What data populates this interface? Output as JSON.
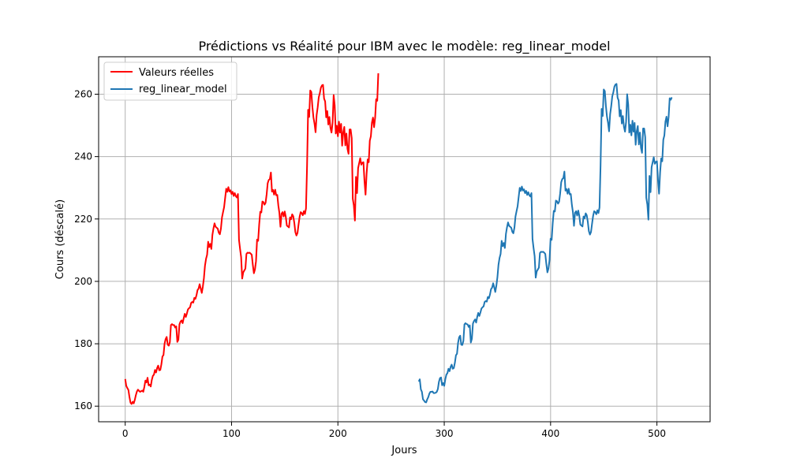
{
  "chart_data": {
    "type": "line",
    "title": "Prédictions vs Réalité pour IBM avec le modèle: reg_linear_model",
    "xlabel": "Jours",
    "ylabel": "Cours (déscalé)",
    "xlim": [
      -25,
      550
    ],
    "ylim": [
      155,
      272
    ],
    "xticks": [
      0,
      100,
      200,
      300,
      400,
      500
    ],
    "yticks": [
      160,
      180,
      200,
      220,
      240,
      260
    ],
    "grid": true,
    "legend_position": "top-left",
    "colors": {
      "actual": "#ff0000",
      "predicted": "#1f77b4",
      "grid": "#b0b0b0"
    },
    "series": [
      {
        "name": "Valeurs réelles",
        "x_start": 0,
        "values": [
          168.7,
          166.5,
          165.8,
          165.2,
          162.9,
          161.1,
          160.7,
          161.4,
          160.9,
          162.0,
          163.5,
          164.7,
          165.3,
          164.9,
          164.6,
          164.8,
          165.0,
          164.6,
          166.2,
          168.2,
          167.6,
          169.1,
          166.7,
          166.9,
          166.3,
          168.4,
          169.7,
          170.1,
          171.6,
          170.8,
          172.2,
          173.0,
          171.5,
          171.6,
          173.4,
          175.9,
          176.4,
          180.0,
          181.5,
          182.2,
          179.7,
          179.4,
          180.5,
          186.0,
          186.3,
          186.0,
          186.0,
          185.2,
          185.6,
          180.6,
          181.3,
          186.2,
          187.1,
          187.5,
          186.6,
          188.2,
          189.6,
          188.6,
          189.7,
          191.0,
          191.4,
          191.7,
          193.1,
          193.4,
          193.2,
          194.7,
          194.4,
          195.5,
          197.2,
          197.7,
          199.1,
          197.7,
          196.3,
          198.3,
          201.0,
          205.0,
          207.2,
          208.5,
          212.7,
          211.0,
          212.0,
          210.4,
          214.9,
          217.0,
          218.6,
          217.5,
          217.2,
          216.9,
          215.6,
          215.1,
          216.9,
          220.5,
          222.2,
          223.8,
          226.8,
          229.7,
          228.7,
          230.2,
          228.8,
          229.2,
          228.0,
          228.7,
          227.4,
          228.3,
          227.3,
          226.9,
          228.0,
          213.3,
          210.4,
          207.8,
          200.9,
          202.9,
          203.5,
          204.1,
          208.8,
          209.2,
          209.1,
          209.2,
          208.9,
          208.5,
          205.3,
          202.6,
          203.8,
          206.5,
          213.4,
          213.0,
          218.3,
          222.3,
          222.1,
          225.6,
          225.4,
          224.6,
          225.2,
          227.9,
          231.5,
          232.5,
          232.8,
          234.9,
          228.8,
          229.3,
          227.8,
          229.4,
          227.6,
          227.7,
          224.3,
          221.9,
          217.5,
          221.7,
          222.2,
          220.8,
          222.4,
          220.7,
          217.9,
          217.6,
          217.3,
          220.5,
          219.9,
          221.5,
          220.9,
          218.8,
          215.8,
          214.7,
          215.5,
          218.2,
          220.7,
          222.2,
          221.9,
          221.2,
          222.5,
          221.6,
          223.4,
          236.9,
          255.0,
          252.7,
          261.2,
          260.7,
          256.0,
          252.6,
          250.6,
          247.8,
          253.3,
          255.8,
          259.0,
          260.3,
          262.1,
          262.8,
          263.0,
          258.6,
          257.7,
          252.6,
          254.6,
          250.3,
          252.7,
          249.2,
          247.7,
          250.8,
          259.7,
          256.4,
          247.4,
          249.9,
          246.5,
          251.2,
          247.7,
          250.5,
          243.5,
          247.8,
          249.5,
          243.6,
          247.4,
          242.5,
          240.9,
          248.7,
          248.7,
          245.9,
          226.5,
          224.3,
          219.5,
          233.5,
          228.3,
          236.3,
          237.9,
          239.5,
          237.4,
          238.0,
          238.2,
          232.2,
          227.8,
          234.6,
          239.1,
          238.2,
          245.1,
          246.5,
          250.9,
          252.5,
          249.4,
          252.4,
          258.4,
          257.9,
          266.7
        ]
      },
      {
        "name": "reg_linear_model",
        "x_start": 276,
        "values": [
          167.9,
          168.6,
          165.4,
          164.6,
          162.2,
          161.8,
          161.3,
          161.2,
          162.2,
          162.9,
          164.0,
          164.6,
          164.6,
          164.7,
          164.2,
          164.2,
          164.3,
          164.6,
          165.5,
          167.8,
          169.0,
          169.2,
          166.7,
          167.4,
          166.5,
          168.6,
          170.1,
          170.6,
          172.0,
          171.2,
          172.6,
          173.3,
          172.0,
          172.2,
          173.9,
          176.3,
          176.8,
          180.3,
          182.1,
          182.6,
          179.7,
          179.6,
          180.9,
          186.2,
          186.6,
          186.3,
          186.2,
          185.4,
          185.9,
          180.4,
          181.6,
          186.5,
          187.3,
          187.8,
          186.8,
          188.6,
          189.9,
          188.9,
          190.0,
          191.3,
          191.7,
          192.0,
          193.4,
          193.7,
          193.5,
          195.0,
          194.6,
          195.8,
          197.5,
          198.0,
          199.4,
          198.1,
          196.6,
          198.6,
          201.3,
          205.3,
          207.5,
          208.8,
          213.0,
          211.3,
          212.3,
          210.7,
          215.2,
          217.3,
          218.9,
          217.8,
          217.5,
          217.2,
          215.9,
          215.4,
          217.2,
          220.8,
          222.5,
          224.1,
          227.1,
          230.0,
          229.0,
          230.4,
          229.1,
          229.5,
          228.3,
          229.0,
          227.7,
          228.6,
          227.6,
          227.2,
          228.3,
          213.6,
          210.7,
          208.1,
          201.2,
          203.2,
          203.8,
          204.4,
          209.1,
          209.5,
          209.4,
          209.5,
          209.2,
          208.8,
          205.6,
          202.9,
          204.1,
          206.8,
          213.7,
          213.3,
          218.6,
          222.6,
          222.4,
          225.9,
          225.7,
          224.9,
          225.5,
          228.2,
          231.8,
          232.8,
          233.1,
          235.2,
          229.1,
          229.6,
          228.1,
          229.7,
          227.9,
          228.0,
          224.6,
          222.2,
          217.8,
          222.0,
          222.5,
          221.1,
          222.7,
          221.0,
          218.2,
          217.9,
          217.6,
          220.8,
          220.2,
          221.8,
          221.2,
          219.1,
          216.1,
          215.0,
          215.8,
          218.5,
          221.0,
          222.5,
          222.2,
          221.5,
          222.8,
          221.9,
          223.7,
          237.2,
          255.3,
          253.0,
          261.5,
          261.0,
          256.3,
          252.9,
          250.9,
          248.1,
          253.6,
          256.1,
          259.3,
          260.6,
          262.4,
          263.1,
          263.3,
          258.9,
          258.0,
          252.9,
          254.9,
          250.6,
          253.0,
          249.5,
          248.0,
          251.1,
          260.0,
          256.7,
          247.7,
          250.2,
          246.8,
          251.5,
          248.0,
          250.8,
          243.8,
          248.1,
          249.8,
          243.9,
          247.7,
          242.8,
          241.2,
          249.0,
          249.0,
          246.2,
          226.8,
          224.6,
          219.8,
          233.8,
          228.6,
          236.6,
          238.2,
          239.8,
          237.7,
          238.3,
          238.5,
          232.5,
          228.1,
          234.9,
          239.4,
          238.5,
          245.4,
          246.8,
          251.2,
          252.8,
          249.7,
          252.7,
          258.7,
          258.2,
          259.0
        ]
      }
    ]
  }
}
